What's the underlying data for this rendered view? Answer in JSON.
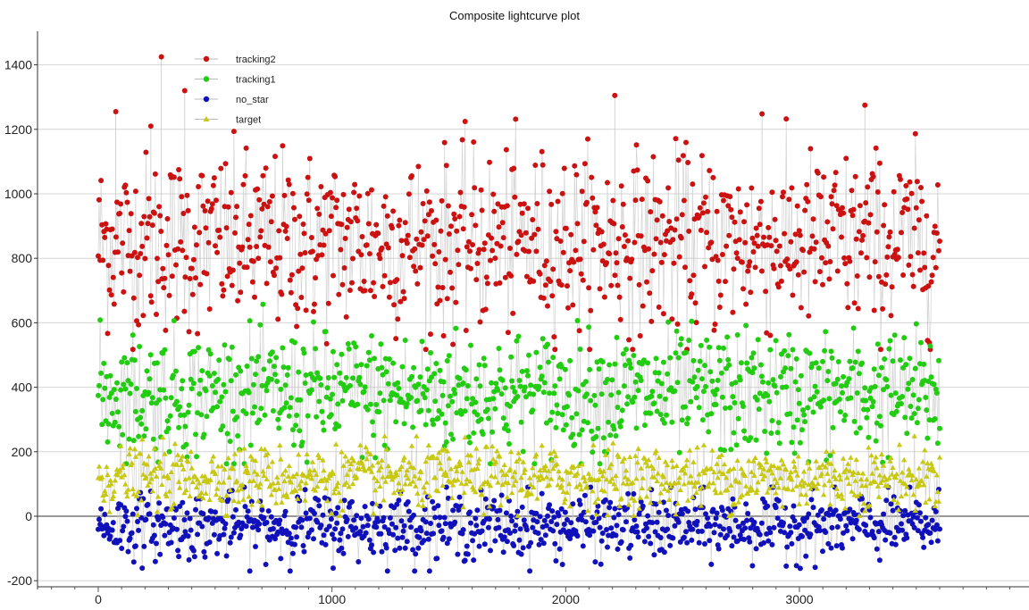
{
  "chart_data": {
    "type": "scatter",
    "title": "Composite lightcurve plot",
    "xlabel": "",
    "ylabel": "",
    "xlim": [
      -200,
      3900
    ],
    "ylim": [
      -220,
      1500
    ],
    "x_ticks": [
      0,
      1000,
      2000,
      3000
    ],
    "y_ticks": [
      -200,
      0,
      200,
      400,
      600,
      800,
      1000,
      1200,
      1400
    ],
    "grid": "horizontal",
    "legend": "top-left",
    "x_range_points": [
      0,
      3600
    ],
    "series": [
      {
        "name": "tracking2",
        "color": "#cc1111",
        "marker": "circle",
        "connector_color": "#c8c8c8",
        "typical_center": 850,
        "typical_spread": [
          600,
          1150
        ],
        "notable_peaks": [
          [
            270,
            1425
          ],
          [
            225,
            1210
          ],
          [
            370,
            1320
          ],
          [
            75,
            1255
          ],
          [
            2210,
            1305
          ],
          [
            2840,
            1248
          ],
          [
            3280,
            1275
          ]
        ]
      },
      {
        "name": "tracking1",
        "color": "#22cc11",
        "marker": "circle",
        "connector_color": "#c8c8c8",
        "typical_center": 380,
        "typical_spread": [
          220,
          600
        ]
      },
      {
        "name": "no_star",
        "color": "#1111bb",
        "marker": "circle",
        "connector_color": "#c8c8c8",
        "typical_center": -30,
        "typical_spread": [
          -140,
          60
        ]
      },
      {
        "name": "target",
        "color": "#c8c810",
        "marker": "triangle",
        "connector_color": "#c8c8c8",
        "typical_center": 120,
        "typical_spread": [
          30,
          220
        ]
      }
    ]
  }
}
